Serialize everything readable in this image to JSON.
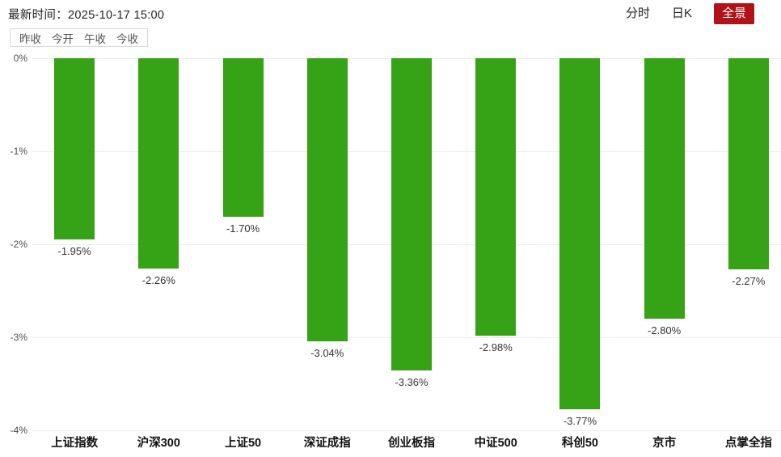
{
  "header": {
    "time_label": "最新时间：2025-10-17 15:00",
    "tabs": [
      {
        "label": "分时",
        "active": false
      },
      {
        "label": "日K",
        "active": false
      },
      {
        "label": "全景",
        "active": true
      }
    ]
  },
  "legend": {
    "items": [
      "昨收",
      "今开",
      "午收",
      "今收"
    ]
  },
  "chart_data": {
    "type": "bar",
    "title": "",
    "categories": [
      "上证指数",
      "沪深300",
      "上证50",
      "深证成指",
      "创业板指",
      "中证500",
      "科创50",
      "京市",
      "点掌全指"
    ],
    "values": [
      -1.95,
      -2.26,
      -1.7,
      -3.04,
      -3.36,
      -2.98,
      -3.77,
      -2.8,
      -2.27
    ],
    "value_labels": [
      "-1.95%",
      "-2.26%",
      "-1.70%",
      "-3.04%",
      "-3.36%",
      "-2.98%",
      "-3.77%",
      "-2.80%",
      "-2.27%"
    ],
    "xlabel": "",
    "ylabel": "",
    "y_ticks": [
      "0%",
      "-1%",
      "-2%",
      "-3%",
      "-4%"
    ],
    "ylim": [
      -4,
      0
    ],
    "grid": true,
    "legend_position": "none",
    "bar_color": "#35a315"
  },
  "colors": {
    "bar_green": "#35a315",
    "active_tab_red": "#b01218",
    "gridline": "#ececec"
  }
}
